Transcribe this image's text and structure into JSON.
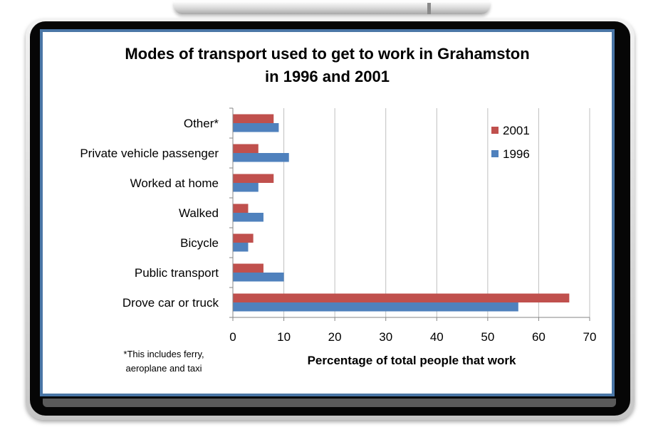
{
  "chart_data": {
    "type": "bar",
    "orientation": "horizontal",
    "title_lines": [
      "Modes of transport used to get to work in Grahamston",
      "in 1996 and 2001"
    ],
    "xlabel": "Percentage of total people that work",
    "ylabel": "",
    "xlim": [
      0,
      70
    ],
    "x_ticks": [
      0,
      10,
      20,
      30,
      40,
      50,
      60,
      70
    ],
    "grid": true,
    "legend_position": "top-right",
    "categories": [
      "Other*",
      "Private vehicle passenger",
      "Worked at home",
      "Walked",
      "Bicycle",
      "Public transport",
      "Drove car or truck"
    ],
    "series": [
      {
        "name": "2001",
        "color": "#c0504d",
        "values": [
          8,
          5,
          8,
          3,
          4,
          6,
          66
        ]
      },
      {
        "name": "1996",
        "color": "#4f81bd",
        "values": [
          9,
          11,
          5,
          6,
          3,
          10,
          56
        ]
      }
    ],
    "footnote_lines": [
      "*This includes ferry,",
      "aeroplane and taxi"
    ]
  }
}
